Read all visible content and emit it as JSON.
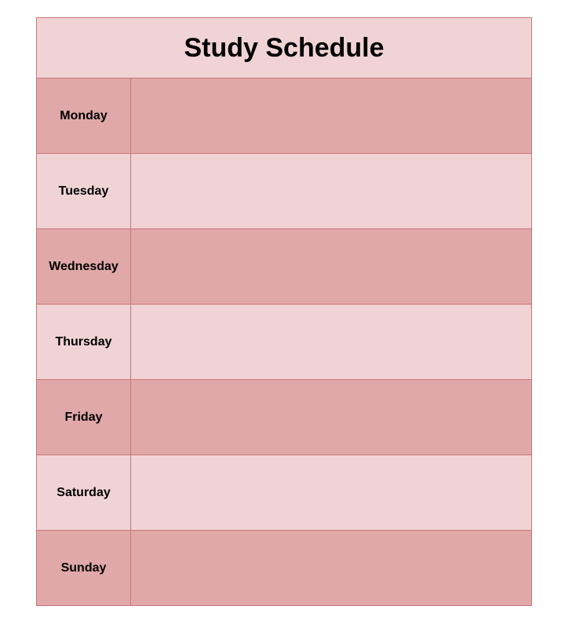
{
  "title": "Study Schedule",
  "days": [
    {
      "label": "Monday",
      "notes": ""
    },
    {
      "label": "Tuesday",
      "notes": ""
    },
    {
      "label": "Wednesday",
      "notes": ""
    },
    {
      "label": "Thursday",
      "notes": ""
    },
    {
      "label": "Friday",
      "notes": ""
    },
    {
      "label": "Saturday",
      "notes": ""
    },
    {
      "label": "Sunday",
      "notes": ""
    }
  ],
  "colors": {
    "dark_row": "#e0a8a8",
    "light_row": "#f0d3d4",
    "border": "#c9787a"
  }
}
